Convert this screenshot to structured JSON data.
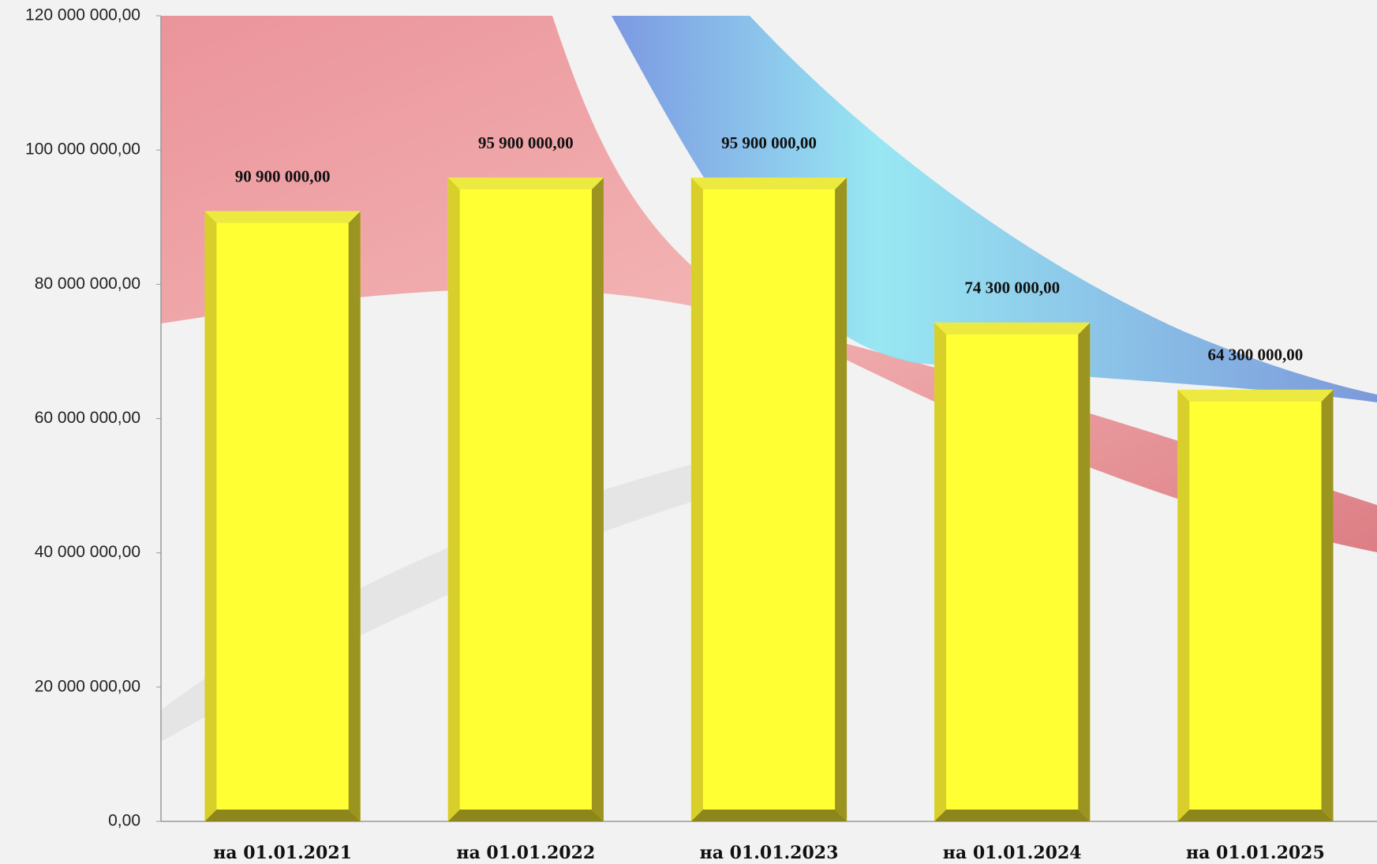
{
  "chart_data": {
    "type": "bar",
    "categories": [
      "на 01.01.2021",
      "на 01.01.2022",
      "на 01.01.2023",
      "на 01.01.2024",
      "на 01.01.2025"
    ],
    "values": [
      90900000,
      95900000,
      95900000,
      74300000,
      64300000
    ],
    "value_labels": [
      "90 900 000,00",
      "95 900 000,00",
      "95 900 000,00",
      "74 300 000,00",
      "64 300 000,00"
    ],
    "color": "#ffff33",
    "ylim": [
      0,
      120000000
    ],
    "yticks": [
      {
        "value": 0,
        "label": "0,00"
      },
      {
        "value": 20000000,
        "label": "20 000 000,00"
      },
      {
        "value": 40000000,
        "label": "40 000 000,00"
      },
      {
        "value": 60000000,
        "label": "60 000 000,00"
      },
      {
        "value": 80000000,
        "label": "80 000 000,00"
      },
      {
        "value": 100000000,
        "label": "100 000 000,00"
      },
      {
        "value": 120000000,
        "label": "120 000 000,00"
      }
    ],
    "grid": false
  }
}
